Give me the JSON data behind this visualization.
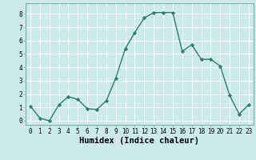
{
  "x": [
    0,
    1,
    2,
    3,
    4,
    5,
    6,
    7,
    8,
    9,
    10,
    11,
    12,
    13,
    14,
    15,
    16,
    17,
    18,
    19,
    20,
    21,
    22,
    23
  ],
  "y": [
    1.1,
    0.2,
    0.0,
    1.2,
    1.8,
    1.6,
    0.9,
    0.85,
    1.5,
    3.2,
    5.4,
    6.6,
    7.7,
    8.1,
    8.1,
    8.1,
    5.2,
    5.7,
    4.6,
    4.6,
    4.1,
    1.9,
    0.5,
    1.2
  ],
  "line_color": "#2e7d6e",
  "marker": "D",
  "marker_size": 2.2,
  "bg_color": "#cceaea",
  "grid_color": "#ffffff",
  "border_color": "#7ab0b0",
  "xlabel": "Humidex (Indice chaleur)",
  "ylim": [
    -0.3,
    8.8
  ],
  "xlim": [
    -0.5,
    23.5
  ],
  "yticks": [
    0,
    1,
    2,
    3,
    4,
    5,
    6,
    7,
    8
  ],
  "xticks": [
    0,
    1,
    2,
    3,
    4,
    5,
    6,
    7,
    8,
    9,
    10,
    11,
    12,
    13,
    14,
    15,
    16,
    17,
    18,
    19,
    20,
    21,
    22,
    23
  ],
  "tick_fontsize": 5.5,
  "xlabel_fontsize": 7.5,
  "line_width": 1.0
}
